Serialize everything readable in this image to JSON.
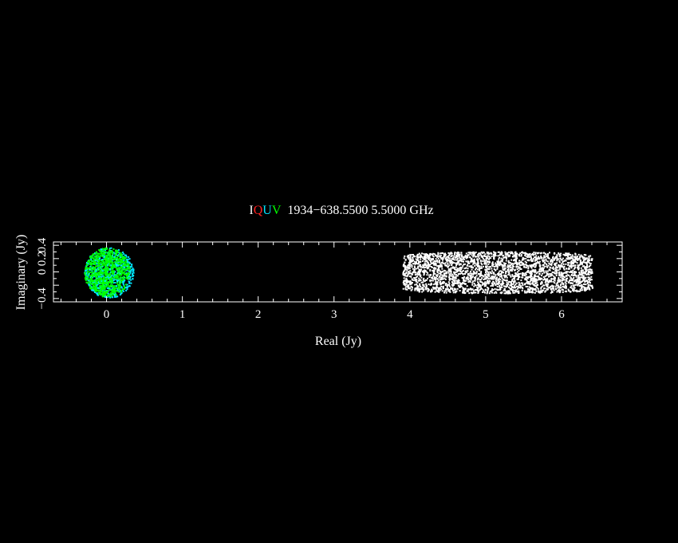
{
  "chart_data": {
    "type": "scatter",
    "title_prefix": [
      {
        "text": "I",
        "color": "#ffffff"
      },
      {
        "text": "Q",
        "color": "#ff2020"
      },
      {
        "text": "U",
        "color": "#00e5ff"
      },
      {
        "text": "V",
        "color": "#00ff00"
      }
    ],
    "title_main": "1934−638.5500 5.5000 GHz",
    "xlabel": "Real (Jy)",
    "ylabel": "Imaginary (Jy)",
    "xlim": [
      -0.7,
      6.8
    ],
    "ylim": [
      -0.45,
      0.45
    ],
    "x_ticks": [
      "0",
      "1",
      "2",
      "3",
      "4",
      "5",
      "6"
    ],
    "y_ticks": [
      "−0.4",
      "0",
      "0.2",
      "0.4"
    ],
    "series": [
      {
        "name": "I",
        "color": "#ffffff",
        "x_range": [
          3.9,
          6.4
        ],
        "y_range": [
          -0.33,
          0.33
        ]
      },
      {
        "name": "U",
        "color": "#00e5ff",
        "x_range": [
          -0.3,
          0.35
        ],
        "y_range": [
          -0.38,
          0.38
        ]
      },
      {
        "name": "V",
        "color": "#00ff00",
        "x_range": [
          -0.3,
          0.3
        ],
        "y_range": [
          -0.37,
          0.37
        ]
      }
    ]
  }
}
